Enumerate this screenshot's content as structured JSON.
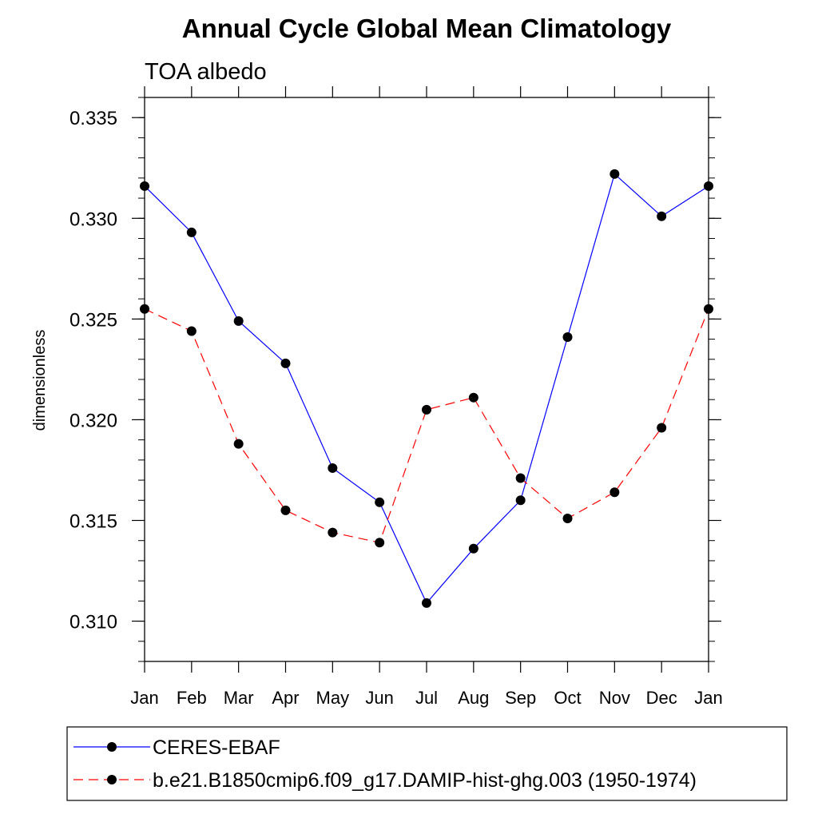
{
  "chart_data": {
    "type": "line",
    "title": "Annual Cycle Global Mean Climatology",
    "subtitle": "TOA albedo",
    "xlabel": "",
    "ylabel": "dimensionless",
    "categories": [
      "Jan",
      "Feb",
      "Mar",
      "Apr",
      "May",
      "Jun",
      "Jul",
      "Aug",
      "Sep",
      "Oct",
      "Nov",
      "Dec",
      "Jan"
    ],
    "ylim": [
      0.308,
      0.336
    ],
    "yticks": [
      "0.310",
      "0.315",
      "0.320",
      "0.325",
      "0.330",
      "0.335"
    ],
    "grid": false,
    "legend_position": "bottom",
    "series": [
      {
        "name": "CERES-EBAF",
        "color": "#0000ff",
        "line_style": "solid",
        "marker": "filled-circle",
        "values": [
          0.3316,
          0.3293,
          0.3249,
          0.3228,
          0.3176,
          0.3159,
          0.3109,
          0.3136,
          0.316,
          0.3241,
          0.3322,
          0.3301,
          0.3316
        ]
      },
      {
        "name": "b.e21.B1850cmip6.f09_g17.DAMIP-hist-ghg.003 (1950-1974)",
        "color": "#ff0000",
        "line_style": "dashed",
        "marker": "filled-circle",
        "values": [
          0.3255,
          0.3244,
          0.3188,
          0.3155,
          0.3144,
          0.3139,
          0.3205,
          0.3211,
          0.3171,
          0.3151,
          0.3164,
          0.3196,
          0.3255
        ]
      }
    ]
  }
}
